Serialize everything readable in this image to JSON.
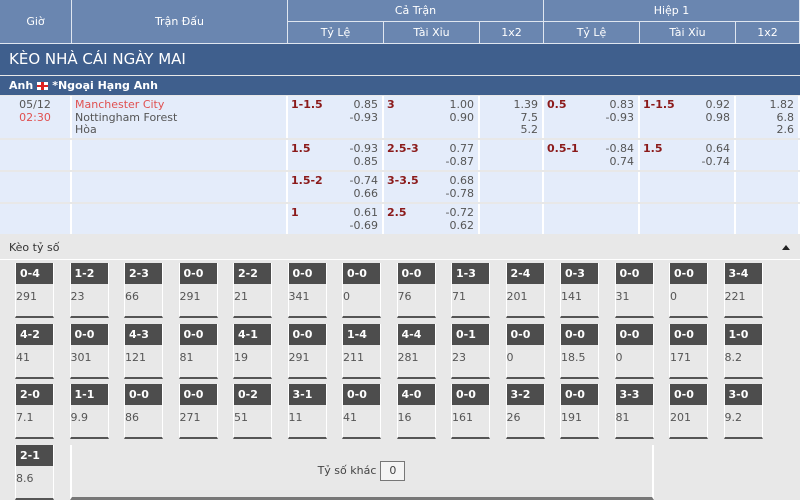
{
  "header": {
    "gio": "Giờ",
    "tran_dau": "Trận Đấu",
    "ca_tran": "Cả Trận",
    "hiep1": "Hiệp 1",
    "ty_le": "Tỷ Lệ",
    "tai_xiu": "Tài Xỉu",
    "x12": "1x2"
  },
  "banner": "KÈO NHÀ CÁI NGÀY MAI",
  "league": {
    "country": "Anh",
    "name": "*Ngoại Hạng Anh"
  },
  "match": {
    "date": "05/12",
    "time": "02:30",
    "home": "Manchester City",
    "away": "Nottingham Forest",
    "draw": "Hòa"
  },
  "rows": [
    {
      "ft_hc": "1-1.5",
      "ft_hc_o": [
        "0.85",
        "-0.93"
      ],
      "ft_ou": "3",
      "ft_ou_o": [
        "1.00",
        "0.90"
      ],
      "ft_1x2": [
        "1.39",
        "7.5",
        "5.2"
      ],
      "h1_hc": "0.5",
      "h1_hc_o": [
        "0.83",
        "-0.93"
      ],
      "h1_ou": "1-1.5",
      "h1_ou_o": [
        "0.92",
        "0.98"
      ],
      "h1_1x2": [
        "1.82",
        "6.8",
        "2.6"
      ]
    },
    {
      "ft_hc": "1.5",
      "ft_hc_o": [
        "-0.93",
        "0.85"
      ],
      "ft_ou": "2.5-3",
      "ft_ou_o": [
        "0.77",
        "-0.87"
      ],
      "h1_hc": "0.5-1",
      "h1_hc_o": [
        "-0.84",
        "0.74"
      ],
      "h1_ou": "1.5",
      "h1_ou_o": [
        "0.64",
        "-0.74"
      ]
    },
    {
      "ft_hc": "1.5-2",
      "ft_hc_o": [
        "-0.74",
        "0.66"
      ],
      "ft_ou": "3-3.5",
      "ft_ou_o": [
        "0.68",
        "-0.78"
      ]
    },
    {
      "ft_hc": "1",
      "ft_hc_o": [
        "0.61",
        "-0.69"
      ],
      "ft_ou": "2.5",
      "ft_ou_o": [
        "-0.72",
        "0.62"
      ]
    }
  ],
  "correct_score": {
    "title": "Kèo tỷ số",
    "other_label": "Tỷ số khác",
    "other_value": "0",
    "tiles": [
      [
        "0-4",
        "291"
      ],
      [
        "1-2",
        "23"
      ],
      [
        "2-3",
        "66"
      ],
      [
        "0-0",
        "291"
      ],
      [
        "2-2",
        "21"
      ],
      [
        "0-0",
        "341"
      ],
      [
        "0-0",
        "0"
      ],
      [
        "0-0",
        "76"
      ],
      [
        "1-3",
        "71"
      ],
      [
        "2-4",
        "201"
      ],
      [
        "0-3",
        "141"
      ],
      [
        "0-0",
        "31"
      ],
      [
        "0-0",
        "0"
      ],
      [
        "3-4",
        "221"
      ],
      [
        "4-2",
        "41"
      ],
      [
        "0-0",
        "301"
      ],
      [
        "4-3",
        "121"
      ],
      [
        "0-0",
        "81"
      ],
      [
        "4-1",
        "19"
      ],
      [
        "0-0",
        "291"
      ],
      [
        "1-4",
        "211"
      ],
      [
        "4-4",
        "281"
      ],
      [
        "0-1",
        "23"
      ],
      [
        "0-0",
        "0"
      ],
      [
        "0-0",
        "18.5"
      ],
      [
        "0-0",
        "0"
      ],
      [
        "0-0",
        "171"
      ],
      [
        "1-0",
        "8.2"
      ],
      [
        "2-0",
        "7.1"
      ],
      [
        "1-1",
        "9.9"
      ],
      [
        "0-0",
        "86"
      ],
      [
        "0-0",
        "271"
      ],
      [
        "0-2",
        "51"
      ],
      [
        "3-1",
        "11"
      ],
      [
        "0-0",
        "41"
      ],
      [
        "4-0",
        "16"
      ],
      [
        "0-0",
        "161"
      ],
      [
        "3-2",
        "26"
      ],
      [
        "0-0",
        "191"
      ],
      [
        "3-3",
        "81"
      ],
      [
        "0-0",
        "201"
      ],
      [
        "3-0",
        "9.2"
      ],
      [
        "2-1",
        "8.6"
      ]
    ]
  }
}
